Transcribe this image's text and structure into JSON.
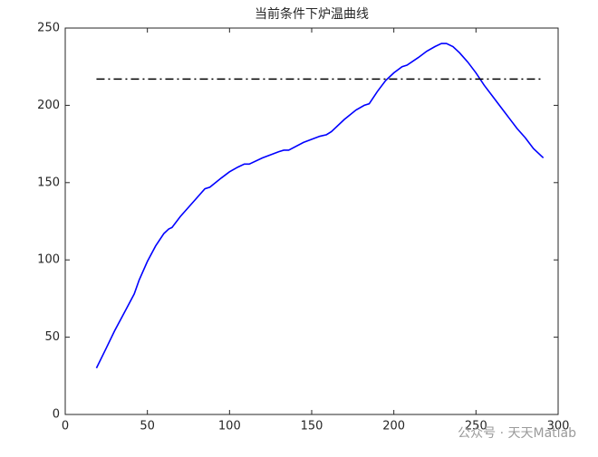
{
  "chart_data": {
    "type": "line",
    "title": "当前条件下炉温曲线",
    "series": [
      {
        "color": "#0000ff",
        "style": "solid",
        "x": [
          19,
          25,
          30,
          35,
          38,
          42,
          45,
          50,
          55,
          60,
          63,
          65,
          70,
          75,
          80,
          85,
          88,
          95,
          100,
          105,
          109,
          112,
          120,
          130,
          133,
          136,
          145,
          155,
          159,
          162,
          170,
          177,
          182,
          185,
          190,
          195,
          200,
          205,
          208,
          215,
          220,
          225,
          229,
          232,
          236,
          240,
          245,
          250,
          255,
          260,
          265,
          270,
          275,
          280,
          285,
          291
        ],
        "values": [
          30,
          43,
          54,
          64,
          70,
          78,
          87,
          99,
          109,
          117,
          120,
          121,
          128,
          134,
          140,
          146,
          147,
          153,
          157,
          160,
          162,
          162,
          166,
          170,
          171,
          171,
          176,
          180,
          181,
          183,
          191,
          197,
          200,
          201,
          209,
          216,
          221,
          225,
          226,
          231,
          235,
          238,
          240,
          240,
          238,
          234,
          228,
          221,
          213,
          206,
          199,
          192,
          185,
          179,
          172,
          166
        ]
      },
      {
        "color": "#000000",
        "style": "dashdot",
        "x": [
          19,
          291
        ],
        "values": [
          217,
          217
        ]
      }
    ],
    "xlim": [
      0,
      300
    ],
    "xticks": [
      0,
      50,
      100,
      150,
      200,
      250,
      300
    ],
    "ylim": [
      0,
      250
    ],
    "yticks": [
      0,
      50,
      100,
      150,
      200,
      250
    ],
    "grid": false,
    "watermark": "公众号 · 天天Matlab"
  }
}
